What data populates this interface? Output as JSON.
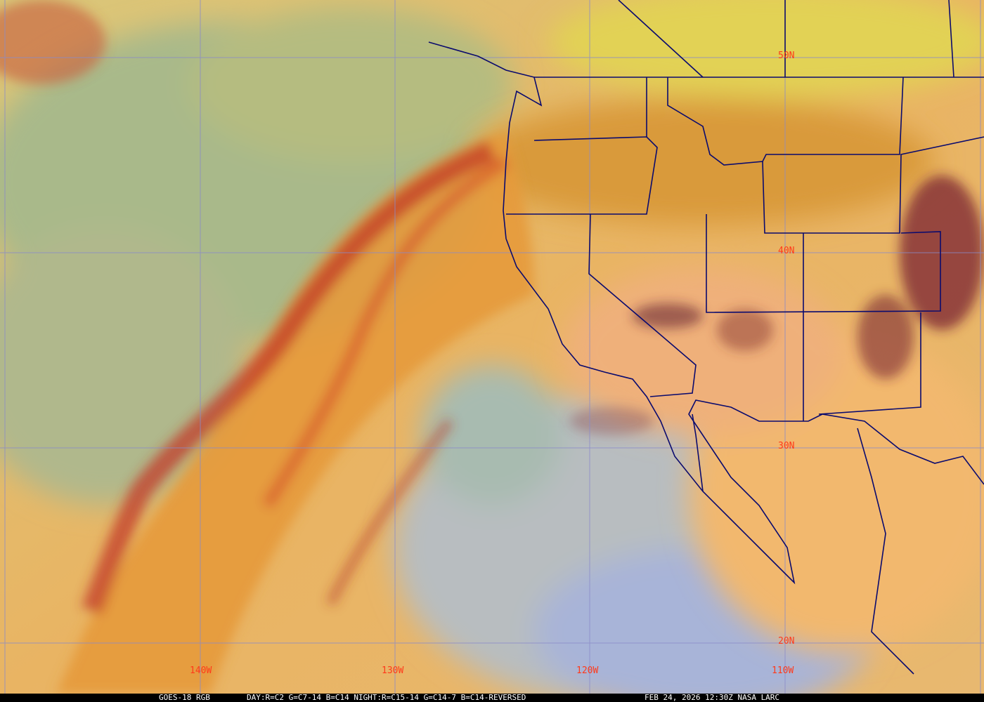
{
  "map": {
    "latitude_labels": [
      "50N",
      "40N",
      "30N",
      "20N"
    ],
    "longitude_labels": [
      "140W",
      "130W",
      "120W",
      "110W"
    ],
    "label_color": "#ff3a1a",
    "grid_color": "#8a8ac8",
    "border_color": "#0a0a6e"
  },
  "footer": {
    "satellite": "GOES-18 RGB",
    "recipe": "DAY:R=C2 G=C7-14 B=C14 NIGHT:R=C15-14 G=C14-7 B=C14-REVERSED",
    "timestamp": "FEB 24, 2026 12:30Z NASA LARC"
  }
}
